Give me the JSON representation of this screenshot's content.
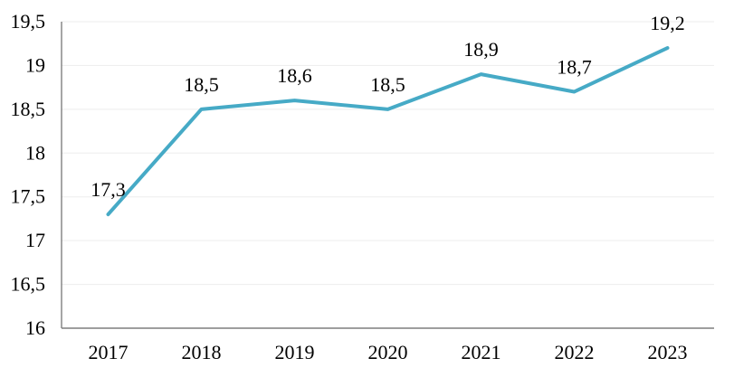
{
  "chart_data": {
    "type": "line",
    "title": "",
    "xlabel": "",
    "ylabel": "",
    "categories": [
      "2017",
      "2018",
      "2019",
      "2020",
      "2021",
      "2022",
      "2023"
    ],
    "series": [
      {
        "name": "",
        "values": [
          17.3,
          18.5,
          18.6,
          18.5,
          18.9,
          18.7,
          19.2
        ],
        "point_labels": [
          "17,3",
          "18,5",
          "18,6",
          "18,5",
          "18,9",
          "18,7",
          "19,2"
        ]
      }
    ],
    "ylim": [
      16,
      19.5
    ],
    "ytick_step": 0.5,
    "ytick_labels": [
      "16",
      "16,5",
      "17",
      "17,5",
      "18",
      "18,5",
      "19",
      "19,5"
    ],
    "decimal_separator": ",",
    "grid": "horizontal",
    "legend": "none",
    "colors": {
      "line": "#46aac6",
      "gridline": "#ededed",
      "axis": "#7f7f7f",
      "text": "#000000",
      "background": "#ffffff"
    }
  }
}
